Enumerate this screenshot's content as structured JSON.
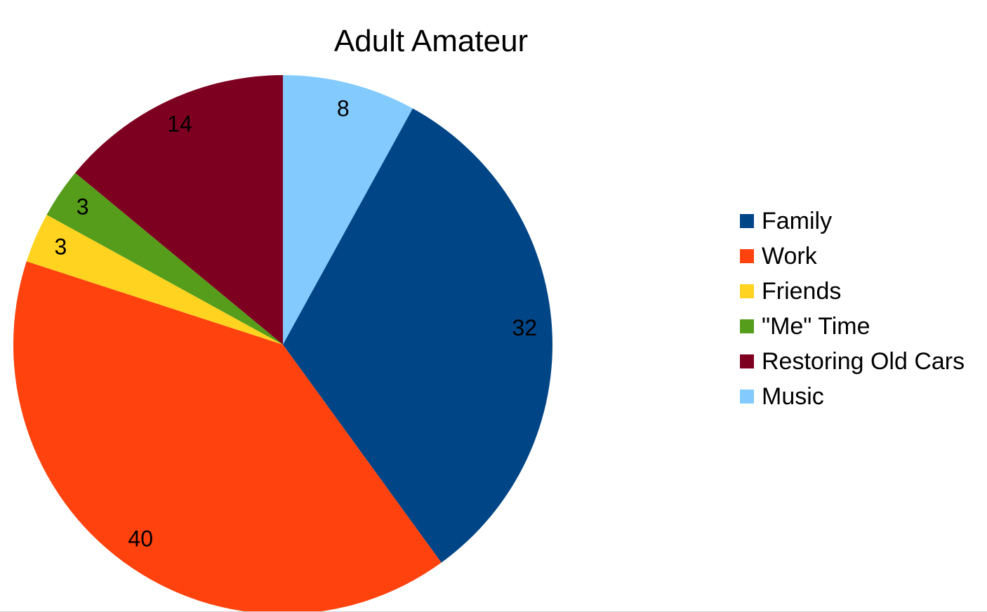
{
  "chart_data": {
    "type": "pie",
    "title": "Adult Amateur",
    "categories": [
      "Family",
      "Work",
      "Friends",
      "\"Me\" Time",
      "Restoring Old Cars",
      "Music"
    ],
    "values": [
      32,
      40,
      3,
      3,
      14,
      8
    ],
    "colors": [
      "#004586",
      "#ff420e",
      "#ffd320",
      "#579d1c",
      "#7e0021",
      "#83caff"
    ],
    "data_labels": [
      "32",
      "40",
      "3",
      "3",
      "14",
      "8"
    ],
    "legend_position": "right",
    "start_angle": "top, clockwise from Music"
  }
}
